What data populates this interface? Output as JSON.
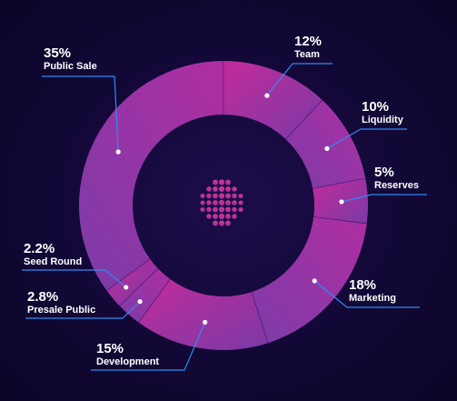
{
  "chart_data": {
    "type": "pie",
    "variant": "donut",
    "categories": [
      "Team",
      "Liquidity",
      "Reserves",
      "Marketing",
      "Development",
      "Presale Public",
      "Seed Round",
      "Public Sale"
    ],
    "values": [
      12,
      10,
      5,
      18,
      15,
      2.8,
      2.2,
      35
    ],
    "labels": [
      "12%",
      "10%",
      "5%",
      "18%",
      "15%",
      "2.8%",
      "2.2%",
      "35%"
    ],
    "legend": "none",
    "colors": {
      "background": "#120836",
      "ring_pink": "#c02a9a",
      "ring_purple": "#7d3aa6",
      "leader_line": "#2f8cf0",
      "text": "#ffffff",
      "logo": "#c3308f"
    }
  },
  "logo": {
    "icon": "hexagon-dot-logo-icon"
  }
}
